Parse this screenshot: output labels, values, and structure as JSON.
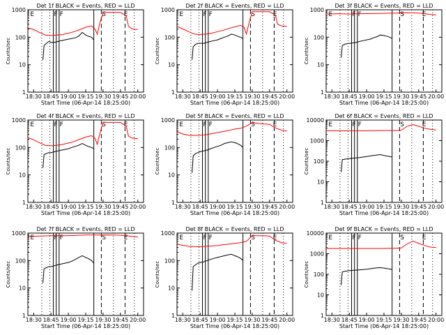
{
  "chart_data": {
    "type": "line",
    "y_scale": "log",
    "xlabel": "Start Time (06-Apr-14 18:25:00)",
    "ylabel": "Counts/sec",
    "ylim": [
      1,
      1000
    ],
    "y_ticks": [
      "1",
      "10",
      "100",
      "1000"
    ],
    "x_ticks": [
      "18:30",
      "18:45",
      "19:00",
      "19:15",
      "19:30",
      "19:45",
      "20:00"
    ],
    "series_colors": {
      "events": "#000000",
      "lld": "#ff0000"
    },
    "panels": [
      {
        "title": "Det 1f BLACK = Events, RED = LLD",
        "y_max_label": "1000",
        "markers": [
          "E",
          "F",
          "F",
          "S",
          "E"
        ],
        "events": {
          "x": [
            "18:38",
            "18:39",
            "18:41",
            "18:43",
            "18:45",
            "18:48",
            "18:51",
            "18:54",
            "18:57",
            "19:00",
            "19:03",
            "19:06",
            "19:09",
            "19:12",
            "19:15",
            "19:17",
            "19:20",
            "19:22"
          ],
          "y": [
            15,
            50,
            60,
            70,
            65,
            65,
            70,
            75,
            80,
            85,
            90,
            95,
            110,
            150,
            120,
            110,
            100,
            80
          ]
        },
        "lld": {
          "x": [
            "18:25",
            "18:30",
            "18:35",
            "18:40",
            "18:45",
            "18:50",
            "18:55",
            "19:00",
            "19:05",
            "19:10",
            "19:15",
            "19:20",
            "19:23",
            "19:25",
            "19:27",
            "19:30",
            "19:35",
            "19:40",
            "19:45",
            "19:50",
            "19:52",
            "19:55",
            "20:00"
          ],
          "y": [
            220,
            190,
            150,
            120,
            115,
            120,
            125,
            140,
            160,
            190,
            230,
            260,
            200,
            130,
            300,
            800,
            800,
            800,
            800,
            600,
            250,
            200,
            190
          ]
        }
      },
      {
        "title": "Det 2f BLACK = Events, RED = LLD",
        "y_max_label": "1000",
        "markers": [
          "E",
          "F",
          "F",
          "S",
          "E"
        ],
        "events": {
          "x": [
            "18:38",
            "18:39",
            "18:41",
            "18:43",
            "18:45",
            "18:48",
            "18:51",
            "18:54",
            "18:57",
            "19:00",
            "19:03",
            "19:06",
            "19:09",
            "19:12",
            "19:15",
            "19:17",
            "19:20",
            "19:22"
          ],
          "y": [
            15,
            45,
            55,
            60,
            60,
            60,
            65,
            70,
            75,
            80,
            90,
            100,
            110,
            130,
            120,
            110,
            100,
            90
          ]
        },
        "lld": {
          "x": [
            "18:25",
            "18:30",
            "18:35",
            "18:40",
            "18:45",
            "18:50",
            "18:55",
            "19:00",
            "19:05",
            "19:10",
            "19:15",
            "19:20",
            "19:23",
            "19:25",
            "19:27",
            "19:30",
            "19:35",
            "19:40",
            "19:45",
            "19:50",
            "19:52",
            "19:55",
            "20:00"
          ],
          "y": [
            250,
            200,
            160,
            130,
            125,
            130,
            140,
            160,
            180,
            210,
            240,
            270,
            230,
            130,
            300,
            850,
            850,
            850,
            850,
            650,
            300,
            260,
            250
          ]
        }
      },
      {
        "title": "Det 3f BLACK = Events, RED = LLD",
        "y_max_label": "1000",
        "markers": [
          "E",
          "F",
          "F",
          "S",
          "E"
        ],
        "events": {
          "x": [
            "18:38",
            "18:39",
            "18:41",
            "18:43",
            "18:45",
            "18:48",
            "18:51",
            "18:54",
            "18:57",
            "19:00",
            "19:03",
            "19:06",
            "19:09",
            "19:12",
            "19:15",
            "19:17",
            "19:20",
            "19:22"
          ],
          "y": [
            18,
            50,
            55,
            58,
            60,
            62,
            65,
            70,
            75,
            80,
            85,
            95,
            105,
            120,
            115,
            110,
            100,
            90
          ]
        },
        "lld": {
          "x": [
            "18:25",
            "18:35",
            "18:45",
            "18:55",
            "19:05",
            "19:15",
            "19:25",
            "19:35",
            "19:45",
            "19:50",
            "19:55",
            "20:00"
          ],
          "y": [
            700,
            720,
            700,
            720,
            730,
            740,
            760,
            780,
            760,
            720,
            680,
            650
          ]
        }
      },
      {
        "title": "Det 4f BLACK = Events, RED = LLD",
        "y_max_label": "1000",
        "markers": [
          "E",
          "F",
          "F",
          "S",
          "E"
        ],
        "events": {
          "x": [
            "18:38",
            "18:39",
            "18:41",
            "18:43",
            "18:45",
            "18:48",
            "18:51",
            "18:54",
            "18:57",
            "19:00",
            "19:03",
            "19:06",
            "19:09",
            "19:12",
            "19:15",
            "19:17",
            "19:20",
            "19:22"
          ],
          "y": [
            18,
            55,
            60,
            65,
            65,
            70,
            75,
            80,
            85,
            90,
            100,
            110,
            120,
            140,
            120,
            110,
            100,
            90
          ]
        },
        "lld": {
          "x": [
            "18:25",
            "18:30",
            "18:35",
            "18:40",
            "18:45",
            "18:50",
            "18:55",
            "19:00",
            "19:05",
            "19:10",
            "19:15",
            "19:20",
            "19:23",
            "19:25",
            "19:27",
            "19:30",
            "19:35",
            "19:40",
            "19:45",
            "19:50",
            "19:52",
            "19:55",
            "20:00"
          ],
          "y": [
            230,
            190,
            150,
            120,
            115,
            120,
            130,
            145,
            165,
            200,
            240,
            270,
            220,
            130,
            300,
            820,
            820,
            820,
            820,
            600,
            260,
            220,
            210
          ]
        }
      },
      {
        "title": "Det 5f BLACK = Events, RED = LLD",
        "y_max_label": "1000",
        "markers": [
          "E",
          "F",
          "F",
          "S",
          "E"
        ],
        "events": {
          "x": [
            "18:38",
            "18:39",
            "18:41",
            "18:43",
            "18:45",
            "18:48",
            "18:51",
            "18:54",
            "18:57",
            "19:00",
            "19:03",
            "19:06",
            "19:09",
            "19:12",
            "19:15",
            "19:17",
            "19:20",
            "19:22"
          ],
          "y": [
            12,
            50,
            60,
            65,
            70,
            75,
            80,
            90,
            100,
            110,
            120,
            140,
            150,
            160,
            150,
            140,
            120,
            100
          ]
        },
        "lld": {
          "x": [
            "18:25",
            "18:30",
            "18:35",
            "18:40",
            "18:45",
            "18:50",
            "18:55",
            "19:00",
            "19:05",
            "19:10",
            "19:15",
            "19:20",
            "19:25",
            "19:30",
            "19:35",
            "19:40",
            "19:45",
            "19:50",
            "19:55",
            "20:00"
          ],
          "y": [
            380,
            310,
            280,
            275,
            280,
            290,
            320,
            350,
            380,
            420,
            470,
            500,
            600,
            800,
            750,
            720,
            700,
            520,
            430,
            400
          ]
        }
      },
      {
        "title": "Det 6f BLACK = Events, RED = LLD",
        "y_max_label": "10000",
        "markers": [
          "E",
          "F",
          "F",
          "S",
          "E"
        ],
        "events": {
          "x": [
            "18:38",
            "18:39",
            "18:41",
            "18:43",
            "18:45",
            "18:48",
            "18:51",
            "18:54",
            "18:57",
            "19:00",
            "19:03",
            "19:06",
            "19:09",
            "19:12",
            "19:15",
            "19:17",
            "19:20",
            "19:22"
          ],
          "y": [
            30,
            120,
            125,
            130,
            135,
            140,
            145,
            150,
            160,
            170,
            180,
            190,
            200,
            210,
            190,
            180,
            170,
            160
          ]
        },
        "lld": {
          "x": [
            "18:25",
            "18:35",
            "18:45",
            "18:55",
            "19:05",
            "19:15",
            "19:25",
            "19:30",
            "19:35",
            "19:40",
            "19:45",
            "19:50",
            "19:55",
            "20:00"
          ],
          "y": [
            3000,
            3000,
            3000,
            3000,
            3050,
            3100,
            3100,
            3200,
            5000,
            6000,
            5000,
            4000,
            3500,
            3300
          ]
        }
      },
      {
        "title": "Det 7f BLACK = Events, RED = LLD",
        "y_max_label": "1000",
        "markers": [
          "E",
          "F",
          "F",
          "S",
          "E"
        ],
        "events": {
          "x": [
            "18:38",
            "18:39",
            "18:41",
            "18:43",
            "18:45",
            "18:48",
            "18:51",
            "18:54",
            "18:57",
            "19:00",
            "19:03",
            "19:06",
            "19:09",
            "19:12",
            "19:15",
            "19:17",
            "19:20",
            "19:22"
          ],
          "y": [
            15,
            50,
            55,
            60,
            60,
            65,
            70,
            75,
            80,
            85,
            95,
            110,
            130,
            150,
            130,
            120,
            100,
            80
          ]
        },
        "lld": {
          "x": [
            "18:25",
            "18:35",
            "18:45",
            "18:55",
            "19:05",
            "19:15",
            "19:25",
            "19:35",
            "19:45",
            "19:50",
            "19:55",
            "20:00"
          ],
          "y": [
            750,
            780,
            800,
            800,
            820,
            850,
            850,
            860,
            840,
            800,
            760,
            720
          ]
        }
      },
      {
        "title": "Det 8f BLACK = Events, RED = LLD",
        "y_max_label": "1000",
        "markers": [
          "E",
          "F",
          "F",
          "S",
          "E"
        ],
        "events": {
          "x": [
            "18:38",
            "18:39",
            "18:41",
            "18:43",
            "18:45",
            "18:48",
            "18:51",
            "18:54",
            "18:57",
            "19:00",
            "19:03",
            "19:06",
            "19:09",
            "19:12",
            "19:15",
            "19:17",
            "19:20",
            "19:22"
          ],
          "y": [
            8,
            60,
            70,
            80,
            85,
            90,
            100,
            110,
            120,
            130,
            140,
            150,
            160,
            170,
            150,
            140,
            120,
            100
          ]
        },
        "lld": {
          "x": [
            "18:25",
            "18:30",
            "18:35",
            "18:40",
            "18:45",
            "18:50",
            "18:55",
            "19:00",
            "19:05",
            "19:10",
            "19:15",
            "19:20",
            "19:25",
            "19:30",
            "19:35",
            "19:40",
            "19:45",
            "19:50",
            "19:55",
            "20:00"
          ],
          "y": [
            400,
            360,
            330,
            320,
            320,
            330,
            340,
            350,
            380,
            400,
            420,
            450,
            500,
            800,
            800,
            800,
            780,
            550,
            450,
            420
          ]
        }
      },
      {
        "title": "Det 9f BLACK = Events, RED = LLD",
        "y_max_label": "10000",
        "markers": [
          "E",
          "F",
          "F",
          "S",
          "E"
        ],
        "events": {
          "x": [
            "18:38",
            "18:39",
            "18:41",
            "18:43",
            "18:45",
            "18:48",
            "18:51",
            "18:54",
            "18:57",
            "19:00",
            "19:03",
            "19:06",
            "19:09",
            "19:12",
            "19:15",
            "19:17",
            "19:20",
            "19:22"
          ],
          "y": [
            30,
            130,
            140,
            145,
            150,
            155,
            160,
            165,
            170,
            175,
            185,
            195,
            205,
            210,
            200,
            190,
            180,
            170
          ]
        },
        "lld": {
          "x": [
            "18:25",
            "18:35",
            "18:45",
            "18:55",
            "19:05",
            "19:15",
            "19:25",
            "19:30",
            "19:35",
            "19:40",
            "19:45",
            "19:50",
            "19:55",
            "20:00"
          ],
          "y": [
            1800,
            1800,
            1800,
            1800,
            1800,
            1800,
            1850,
            1900,
            3000,
            4000,
            3200,
            2500,
            2100,
            2000
          ]
        }
      }
    ]
  }
}
